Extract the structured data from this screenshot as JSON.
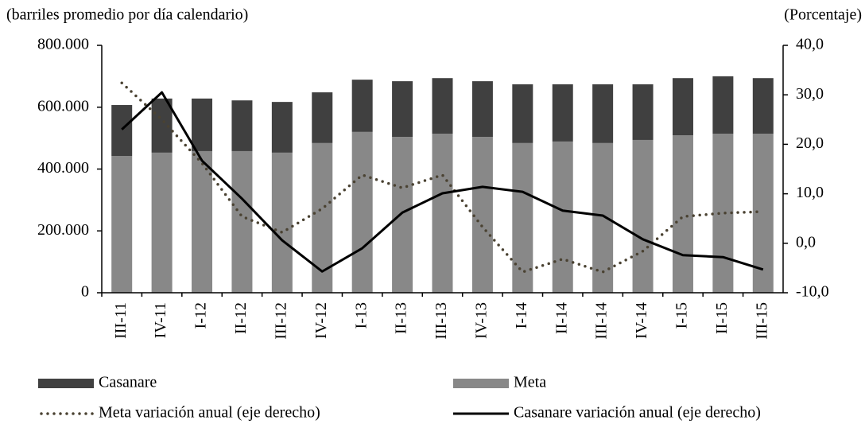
{
  "chart_data": {
    "type": "bar",
    "stacked": true,
    "y_axis_label": "(barriles promedio por día calendario)",
    "y2_axis_label": "(Porcentaje)",
    "categories": [
      "III-11",
      "IV-11",
      "I-12",
      "II-12",
      "III-12",
      "IV-12",
      "I-13",
      "II-13",
      "III-13",
      "IV-13",
      "I-14",
      "II-14",
      "III-14",
      "IV-14",
      "I-15",
      "II-15",
      "III-15"
    ],
    "series": [
      {
        "name": "Meta",
        "type": "bar",
        "color": "#888888",
        "values": [
          442000,
          453000,
          458000,
          458000,
          453000,
          484000,
          520000,
          504000,
          514000,
          504000,
          484000,
          489000,
          484000,
          494000,
          509000,
          514000,
          514000
        ]
      },
      {
        "name": "Casanare",
        "type": "bar",
        "color": "#404040",
        "values": [
          165000,
          175000,
          170000,
          164000,
          164000,
          164000,
          169000,
          180000,
          180000,
          180000,
          190000,
          185000,
          190000,
          180000,
          185000,
          186000,
          180000
        ]
      },
      {
        "name": "Meta variación anual (eje derecho)",
        "type": "line",
        "axis": "y2",
        "style": "dotted",
        "color": "#4a4232",
        "values": [
          32.4,
          25,
          16.2,
          5.4,
          2.2,
          7,
          13.8,
          11.2,
          13.8,
          3.3,
          -5.8,
          -3.2,
          -5.8,
          -1.6,
          5.4,
          6.1,
          6.4
        ]
      },
      {
        "name": "Casanare variación anual (eje derecho)",
        "type": "line",
        "axis": "y2",
        "style": "solid",
        "color": "#000000",
        "values": [
          23,
          30.5,
          16.7,
          9,
          0.6,
          -5.7,
          -1,
          6.2,
          10.1,
          11.4,
          10.4,
          6.6,
          5.6,
          0.8,
          -2.4,
          -2.8,
          -5.3
        ]
      }
    ],
    "ylim": [
      0,
      800000
    ],
    "yticks": [
      0,
      {
        "value": 200000,
        "label": "200.000"
      },
      {
        "value": 400000,
        "label": "400.000"
      },
      {
        "value": 600000,
        "label": "600.000"
      },
      {
        "value": 800000,
        "label": "800.000"
      }
    ],
    "y2lim": [
      -10,
      40
    ],
    "y2ticks": [
      {
        "value": -10,
        "label": "-10,0"
      },
      {
        "value": 0,
        "label": "0,0"
      },
      {
        "value": 10,
        "label": "10,0"
      },
      {
        "value": 20,
        "label": "20,0"
      },
      {
        "value": 30,
        "label": "30,0"
      },
      {
        "value": 40,
        "label": "40,0"
      }
    ],
    "grid": false,
    "legend": "bottom"
  }
}
